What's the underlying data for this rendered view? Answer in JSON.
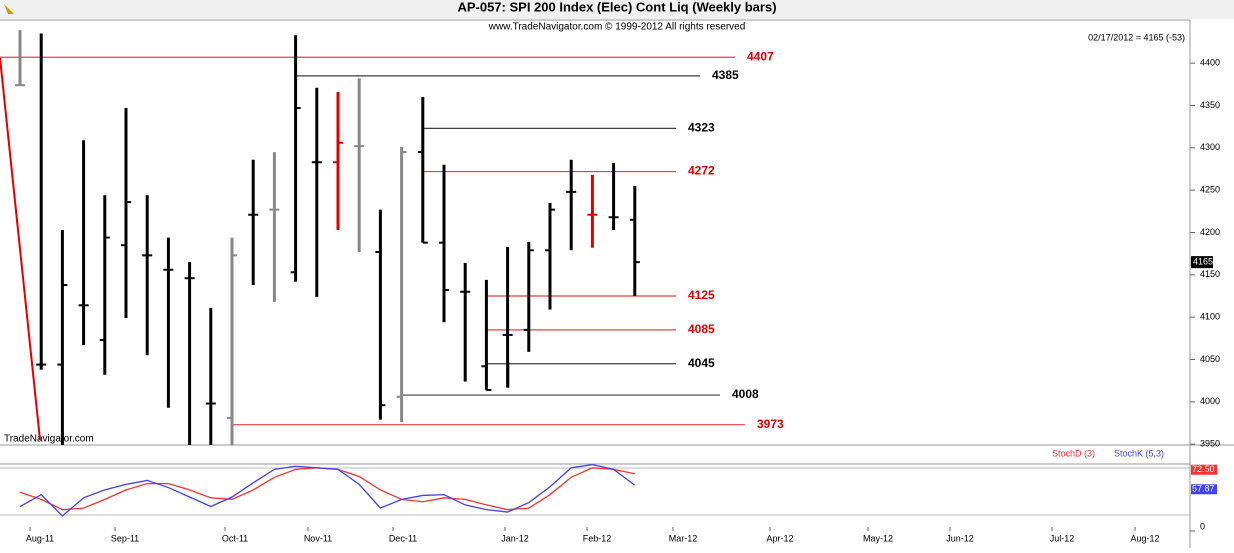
{
  "chart_data": {
    "type": "ohlc",
    "title": "AP-057:  SPI 200 Index (Elec) Cont Liq  (Weekly bars)",
    "subtitle": "www.TradeNavigator.com © 1999-2012 All rights reserved",
    "status": "02/17/2012 = 4165 (-53)",
    "watermark": "TradeNavigator.com",
    "last_price": 4165,
    "ylim": [
      3949,
      4451
    ],
    "yticks": [
      3950,
      4000,
      4050,
      4100,
      4150,
      4200,
      4250,
      4300,
      4350,
      4400
    ],
    "xticks": [
      "Aug-11",
      "Sep-11",
      "Oct-11",
      "Nov-11",
      "Dec-11",
      "Jan-12",
      "Feb-12",
      "Mar-12",
      "Apr-12",
      "May-12",
      "Jun-12",
      "Jul-12",
      "Aug-12"
    ],
    "bars": [
      {
        "open": 4374,
        "high": 4439,
        "low": 4374,
        "close": 4374,
        "color": "#888888"
      },
      {
        "open": 4044,
        "high": 4435,
        "low": 4038,
        "close": 4044,
        "color": "#000000"
      },
      {
        "open": 4044,
        "high": 4203,
        "low": 3945,
        "close": 4138,
        "color": "#000000"
      },
      {
        "open": 4114,
        "high": 4309,
        "low": 4067,
        "close": 4114,
        "color": "#000000"
      },
      {
        "open": 4073,
        "high": 4244,
        "low": 4032,
        "close": 4194,
        "color": "#000000"
      },
      {
        "open": 4185,
        "high": 4347,
        "low": 4099,
        "close": 4236,
        "color": "#000000"
      },
      {
        "open": 4173,
        "high": 4244,
        "low": 4055,
        "close": 4173,
        "color": "#000000"
      },
      {
        "open": 4156,
        "high": 4194,
        "low": 3993,
        "close": 4156,
        "color": "#000000"
      },
      {
        "open": 4146,
        "high": 4165,
        "low": 3945,
        "close": 4146,
        "color": "#000000"
      },
      {
        "open": 3998,
        "high": 4111,
        "low": 3945,
        "close": 3998,
        "color": "#000000"
      },
      {
        "open": 3981,
        "high": 4194,
        "low": 3945,
        "close": 4173,
        "color": "#888888"
      },
      {
        "open": 4221,
        "high": 4286,
        "low": 4138,
        "close": 4221,
        "color": "#000000"
      },
      {
        "open": 4227,
        "high": 4295,
        "low": 4118,
        "close": 4227,
        "color": "#888888"
      },
      {
        "open": 4153,
        "high": 4433,
        "low": 4142,
        "close": 4347,
        "color": "#000000"
      },
      {
        "open": 4283,
        "high": 4371,
        "low": 4124,
        "close": 4283,
        "color": "#000000"
      },
      {
        "open": 4283,
        "high": 4366,
        "low": 4203,
        "close": 4306,
        "color": "#e00000"
      },
      {
        "open": 4302,
        "high": 4382,
        "low": 4177,
        "close": 4302,
        "color": "#888888"
      },
      {
        "open": 4177,
        "high": 4227,
        "low": 3979,
        "close": 3996,
        "color": "#000000"
      },
      {
        "open": 4006,
        "high": 4301,
        "low": 3976,
        "close": 4295,
        "color": "#888888"
      },
      {
        "open": 4295,
        "high": 4360,
        "low": 4188,
        "close": 4188,
        "color": "#000000"
      },
      {
        "open": 4188,
        "high": 4280,
        "low": 4094,
        "close": 4132,
        "color": "#000000"
      },
      {
        "open": 4130,
        "high": 4164,
        "low": 4024,
        "close": 4130,
        "color": "#000000"
      },
      {
        "open": 4042,
        "high": 4144,
        "low": 4014,
        "close": 4014,
        "color": "#000000"
      },
      {
        "open": 4079,
        "high": 4183,
        "low": 4017,
        "close": 4079,
        "color": "#000000"
      },
      {
        "open": 4085,
        "high": 4189,
        "low": 4059,
        "close": 4179,
        "color": "#000000"
      },
      {
        "open": 4179,
        "high": 4235,
        "low": 4109,
        "close": 4227,
        "color": "#000000"
      },
      {
        "open": 4248,
        "high": 4286,
        "low": 4179,
        "close": 4248,
        "color": "#000000"
      },
      {
        "open": 4221,
        "high": 4268,
        "low": 4182,
        "close": 4221,
        "color": "#e00000"
      },
      {
        "open": 4218,
        "high": 4282,
        "low": 4203,
        "close": 4218,
        "color": "#000000"
      },
      {
        "open": 4215,
        "high": 4255,
        "low": 4125,
        "close": 4165,
        "color": "#000000"
      }
    ],
    "levels": [
      {
        "value": 4407,
        "color": "#e00000"
      },
      {
        "value": 4385,
        "color": "#000000"
      },
      {
        "value": 4323,
        "color": "#000000"
      },
      {
        "value": 4272,
        "color": "#e00000"
      },
      {
        "value": 4125,
        "color": "#e00000"
      },
      {
        "value": 4085,
        "color": "#e00000"
      },
      {
        "value": 4045,
        "color": "#000000"
      },
      {
        "value": 4008,
        "color": "#000000"
      },
      {
        "value": 3973,
        "color": "#e00000"
      }
    ],
    "indicator": {
      "ylim": [
        0,
        100
      ],
      "yticks": [
        0
      ],
      "series": [
        {
          "name": "StochD (3)",
          "color": "#ff3030",
          "values": [
            49,
            40,
            27,
            29,
            40,
            52,
            60,
            60,
            52,
            42,
            40,
            52,
            68,
            78,
            80,
            78,
            69,
            52,
            40,
            37,
            42,
            40,
            33,
            27,
            29,
            46,
            68,
            80,
            78,
            72.5
          ],
          "last_label": "72.50"
        },
        {
          "name": "StochK (5,3)",
          "color": "#4040ff",
          "values": [
            31,
            46,
            19,
            42,
            52,
            59,
            64,
            55,
            43,
            31,
            43,
            61,
            78,
            82,
            80,
            78,
            59,
            29,
            40,
            45,
            46,
            33,
            27,
            24,
            36,
            56,
            80,
            84,
            78,
            57.87
          ],
          "last_label": "57.87"
        }
      ]
    }
  }
}
